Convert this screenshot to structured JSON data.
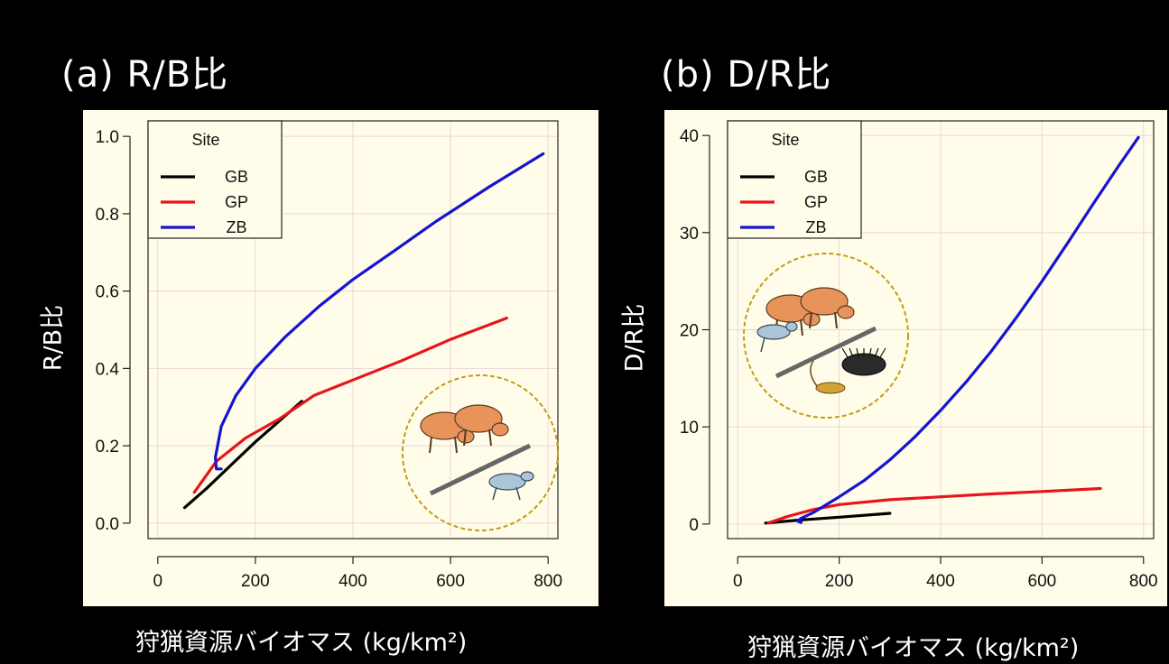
{
  "chart_data": [
    {
      "type": "line",
      "panel_title": "(a) R/B比",
      "title": "",
      "xlabel": "狩猟資源バイオマス (kg/km²)",
      "ylabel": "R/B比",
      "xlim": [
        -20,
        820
      ],
      "ylim": [
        -0.04,
        1.04
      ],
      "x_ticks": [
        "0",
        "200",
        "400",
        "600",
        "800"
      ],
      "y_ticks": [
        "0.0",
        "0.2",
        "0.4",
        "0.6",
        "0.8",
        "1.0"
      ],
      "grid": true,
      "legend": {
        "title": "Site",
        "position": "top-left",
        "entries": [
          "GB",
          "GP",
          "ZB"
        ]
      },
      "series": [
        {
          "name": "GB",
          "color": "#000000",
          "points": [
            [
              55,
              0.04
            ],
            [
              100,
              0.09
            ],
            [
              150,
              0.15
            ],
            [
              200,
              0.21
            ],
            [
              250,
              0.265
            ],
            [
              295,
              0.315
            ]
          ]
        },
        {
          "name": "GP",
          "color": "#e8141b",
          "points": [
            [
              75,
              0.08
            ],
            [
              120,
              0.16
            ],
            [
              180,
              0.22
            ],
            [
              250,
              0.27
            ],
            [
              320,
              0.33
            ],
            [
              400,
              0.37
            ],
            [
              500,
              0.42
            ],
            [
              600,
              0.475
            ],
            [
              715,
              0.53
            ]
          ]
        },
        {
          "name": "ZB",
          "color": "#1515d0",
          "points": [
            [
              130,
              0.14
            ],
            [
              120,
              0.14
            ],
            [
              118,
              0.17
            ],
            [
              130,
              0.25
            ],
            [
              160,
              0.33
            ],
            [
              200,
              0.4
            ],
            [
              260,
              0.48
            ],
            [
              330,
              0.56
            ],
            [
              400,
              0.63
            ],
            [
              480,
              0.7
            ],
            [
              570,
              0.78
            ],
            [
              680,
              0.87
            ],
            [
              790,
              0.955
            ]
          ]
        }
      ]
    },
    {
      "type": "line",
      "panel_title": "(b) D/R比",
      "title": "",
      "xlabel": "狩猟資源バイオマス (kg/km²)",
      "ylabel": "D/R比",
      "xlim": [
        -20,
        820
      ],
      "ylim": [
        -1.5,
        41.5
      ],
      "x_ticks": [
        "0",
        "200",
        "400",
        "600",
        "800"
      ],
      "y_ticks": [
        "0",
        "10",
        "20",
        "30",
        "40"
      ],
      "grid": true,
      "legend": {
        "title": "Site",
        "position": "top-left",
        "entries": [
          "GB",
          "GP",
          "ZB"
        ]
      },
      "series": [
        {
          "name": "GB",
          "color": "#000000",
          "points": [
            [
              55,
              0.1
            ],
            [
              120,
              0.4
            ],
            [
              200,
              0.7
            ],
            [
              300,
              1.1
            ]
          ]
        },
        {
          "name": "GP",
          "color": "#e8141b",
          "points": [
            [
              60,
              0.1
            ],
            [
              100,
              0.8
            ],
            [
              150,
              1.5
            ],
            [
              200,
              2.0
            ],
            [
              300,
              2.5
            ],
            [
              400,
              2.8
            ],
            [
              500,
              3.1
            ],
            [
              600,
              3.35
            ],
            [
              715,
              3.65
            ]
          ]
        },
        {
          "name": "ZB",
          "color": "#1515d0",
          "points": [
            [
              125,
              0.15
            ],
            [
              118,
              0.3
            ],
            [
              125,
              0.6
            ],
            [
              150,
              1.2
            ],
            [
              200,
              2.8
            ],
            [
              250,
              4.5
            ],
            [
              300,
              6.6
            ],
            [
              350,
              9.0
            ],
            [
              400,
              11.7
            ],
            [
              450,
              14.6
            ],
            [
              500,
              17.8
            ],
            [
              550,
              21.3
            ],
            [
              600,
              25.0
            ],
            [
              650,
              28.9
            ],
            [
              700,
              32.9
            ],
            [
              750,
              36.8
            ],
            [
              790,
              39.8
            ]
          ]
        }
      ]
    }
  ],
  "colors": {
    "background": "#000000",
    "plot_bg": "#fffde9",
    "grid": "#ecd5d5",
    "inset_circle": "#c49a16"
  }
}
